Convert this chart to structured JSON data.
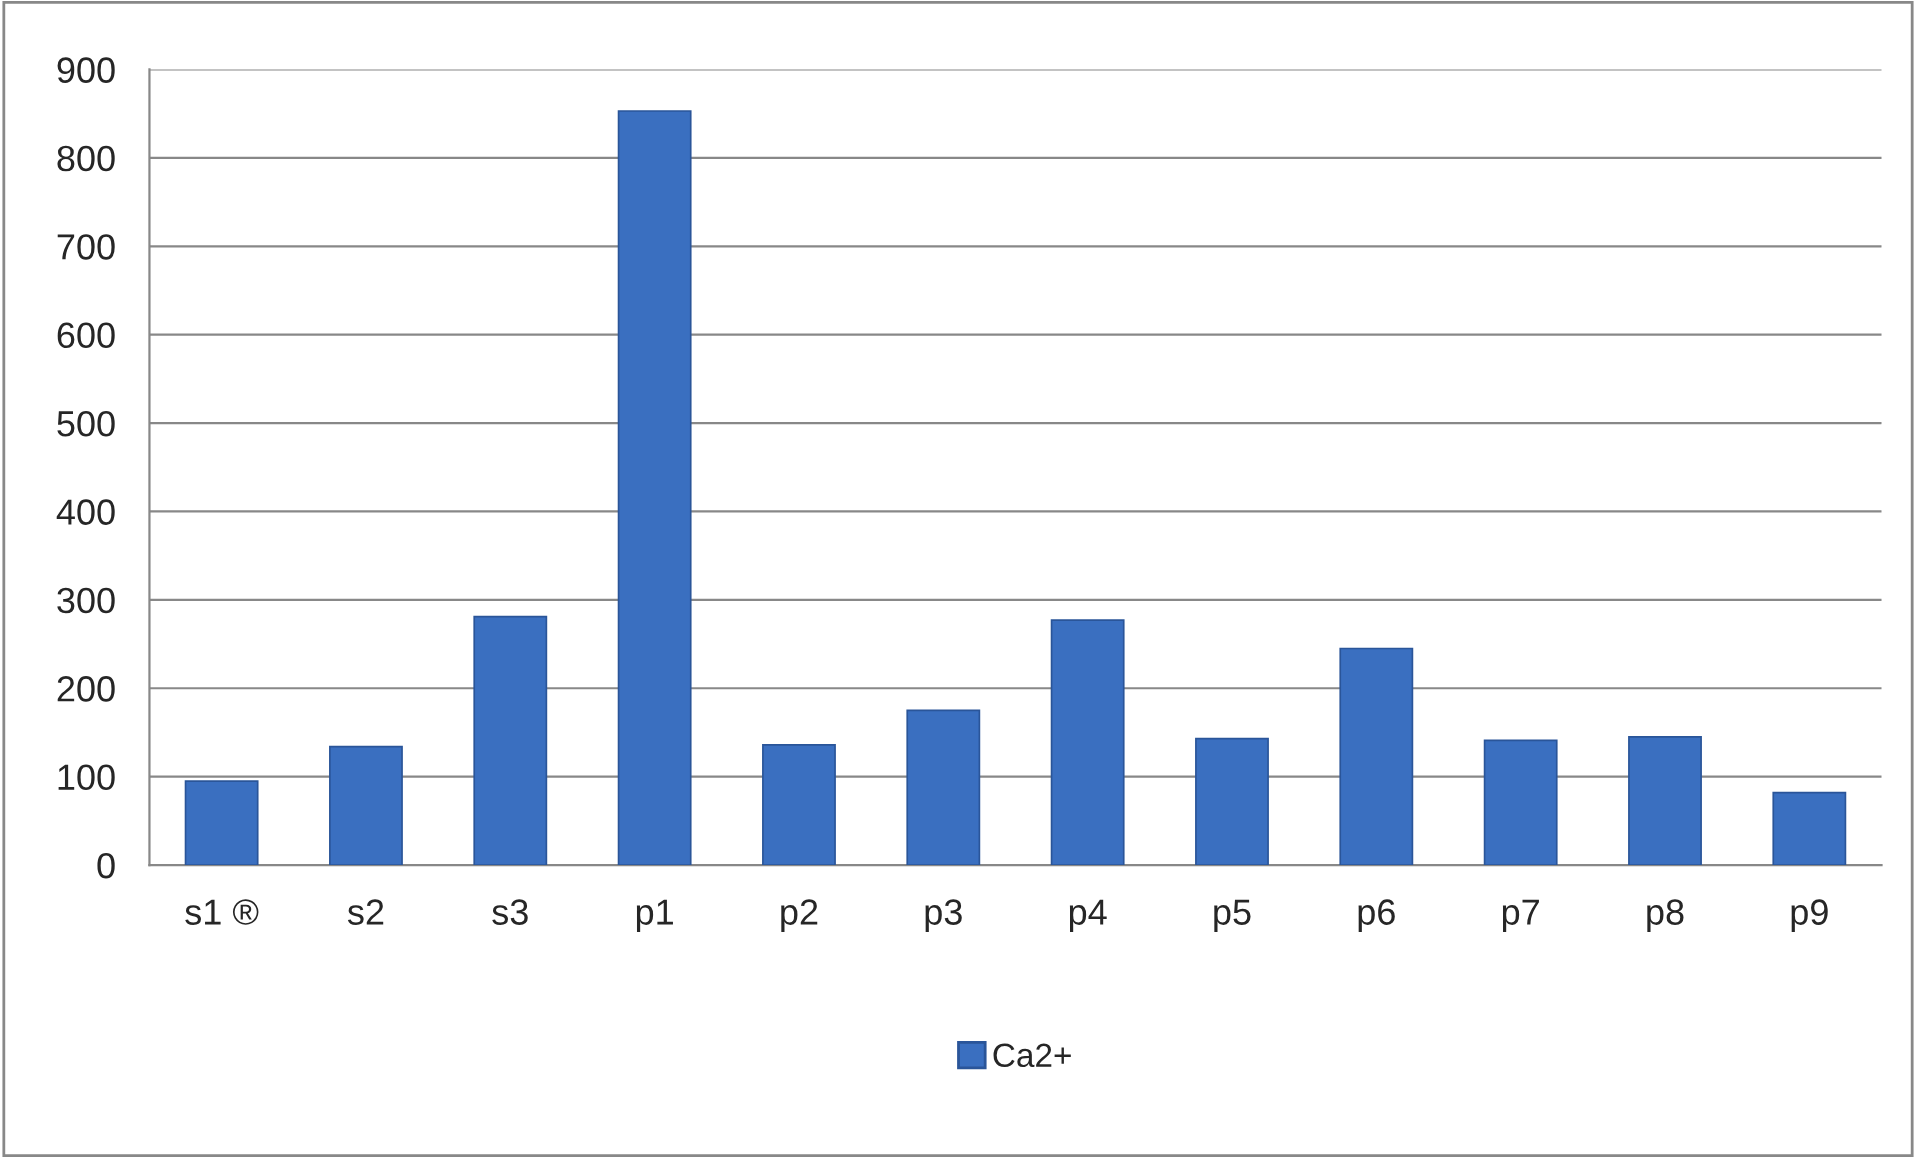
{
  "chart_data": {
    "type": "bar",
    "categories": [
      "s1 ®",
      "s2",
      "s3",
      "p1",
      "p2",
      "p3",
      "p4",
      "p5",
      "p6",
      "p7",
      "p8",
      "p9"
    ],
    "series": [
      {
        "name": "Ca2+",
        "color": "#3a6fc0",
        "values": [
          95,
          134,
          281,
          853,
          136,
          175,
          277,
          143,
          245,
          141,
          145,
          82
        ]
      }
    ],
    "ylim": [
      0,
      900
    ],
    "yticks": [
      0,
      100,
      200,
      300,
      400,
      500,
      600,
      700,
      800,
      900
    ],
    "grid": "y",
    "legend": "bottom"
  }
}
